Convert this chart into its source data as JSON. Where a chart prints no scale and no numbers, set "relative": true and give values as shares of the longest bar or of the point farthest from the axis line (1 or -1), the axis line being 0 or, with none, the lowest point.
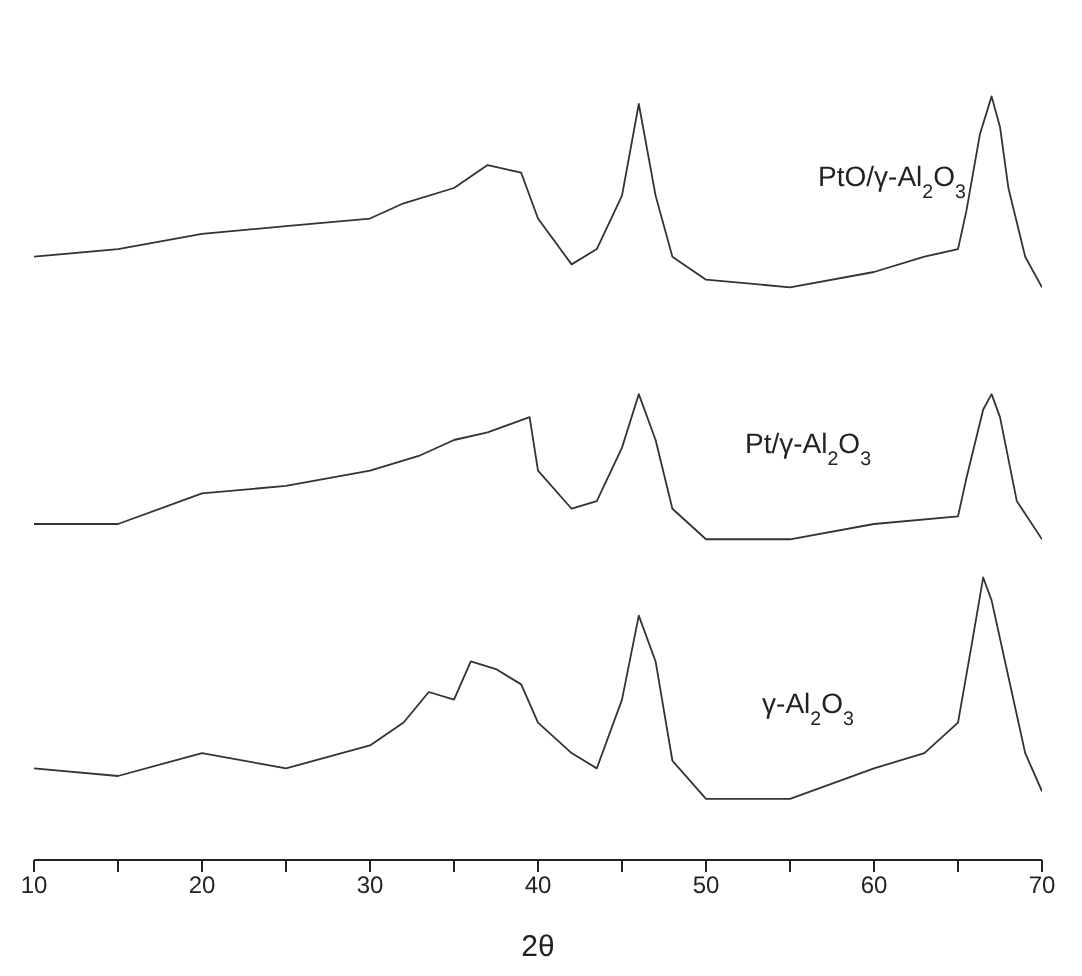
{
  "chart_data": {
    "type": "line",
    "relative": true,
    "xlabel": "2θ",
    "xlim": [
      10,
      70
    ],
    "xticks": [
      10,
      {
        "value": 15,
        "label": null
      },
      20,
      {
        "value": 25,
        "label": null
      },
      30,
      {
        "value": 35,
        "label": null
      },
      40,
      {
        "value": 45,
        "label": null
      },
      50,
      {
        "value": 55,
        "label": null
      },
      60,
      {
        "value": 65,
        "label": null
      },
      70
    ],
    "marker": "none",
    "line_style": "solid",
    "series": [
      {
        "name": "PtO/γ-Al$_{2}$O$_{3}$",
        "color": "#333333",
        "x": [
          10,
          15,
          20,
          25,
          30,
          32,
          35,
          37,
          39,
          40,
          42,
          43.5,
          45,
          46,
          47,
          48,
          50,
          55,
          60,
          63,
          65,
          65.5,
          66.3,
          67,
          67.5,
          68,
          69,
          70
        ],
        "values": [
          0.79,
          0.8,
          0.82,
          0.83,
          0.84,
          0.86,
          0.88,
          0.91,
          0.9,
          0.84,
          0.78,
          0.8,
          0.87,
          0.99,
          0.87,
          0.79,
          0.76,
          0.75,
          0.77,
          0.79,
          0.8,
          0.85,
          0.95,
          1,
          0.96,
          0.88,
          0.79,
          0.75
        ]
      },
      {
        "name": "Pt/γ-Al$_{2}$O$_{3}$",
        "color": "#333333",
        "x": [
          10,
          15,
          20,
          25,
          30,
          33,
          35,
          37,
          39.5,
          40,
          42,
          43.5,
          45,
          46,
          47,
          48,
          50,
          55,
          60,
          65,
          65.5,
          66.5,
          67,
          67.5,
          68.5,
          70
        ],
        "values": [
          0.44,
          0.44,
          0.48,
          0.49,
          0.51,
          0.53,
          0.55,
          0.56,
          0.58,
          0.51,
          0.46,
          0.47,
          0.54,
          0.61,
          0.55,
          0.46,
          0.42,
          0.42,
          0.44,
          0.45,
          0.5,
          0.59,
          0.61,
          0.58,
          0.47,
          0.42
        ]
      },
      {
        "name": "γ-Al$_{2}$O$_{3}$",
        "color": "#333333",
        "x": [
          10,
          15,
          20,
          25,
          30,
          32,
          33.5,
          35,
          36,
          37.5,
          39,
          40,
          42,
          43.5,
          45,
          46,
          47,
          48,
          50,
          55,
          60,
          63,
          65,
          65.8,
          66.5,
          67,
          68,
          69,
          70
        ],
        "values": [
          0.12,
          0.11,
          0.14,
          0.12,
          0.15,
          0.18,
          0.22,
          0.21,
          0.26,
          0.25,
          0.23,
          0.18,
          0.14,
          0.12,
          0.21,
          0.32,
          0.26,
          0.13,
          0.08,
          0.08,
          0.12,
          0.14,
          0.18,
          0.28,
          0.37,
          0.34,
          0.24,
          0.14,
          0.09
        ]
      }
    ]
  }
}
